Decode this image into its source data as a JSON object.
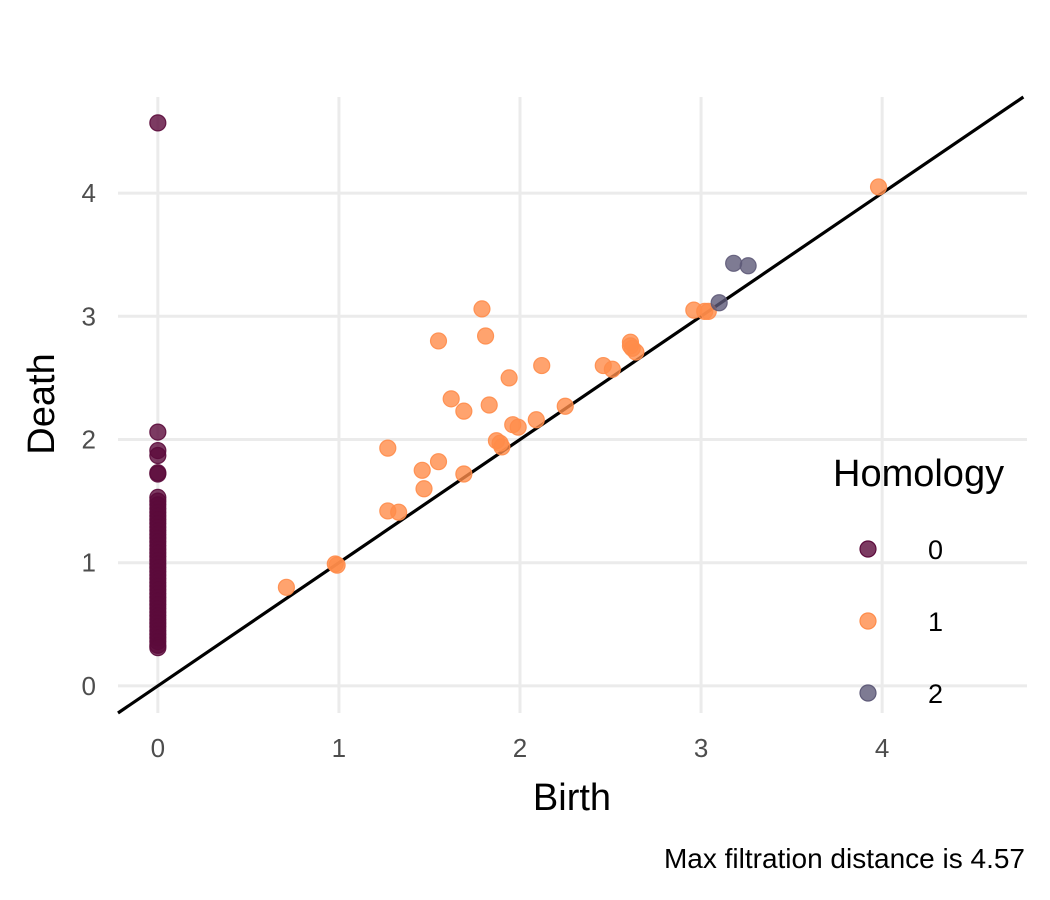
{
  "chart_data": {
    "type": "scatter",
    "xlabel": "Birth",
    "ylabel": "Death",
    "caption": "Max filtration distance is 4.57",
    "xlim": [
      -0.22,
      4.8
    ],
    "ylim": [
      -0.22,
      4.78
    ],
    "x_ticks": [
      0,
      1,
      2,
      3,
      4
    ],
    "y_ticks": [
      0,
      1,
      2,
      3,
      4
    ],
    "grid": true,
    "diagonal_line": true,
    "legend": {
      "title": "Homology",
      "position": "right",
      "entries": [
        "0",
        "1",
        "2"
      ]
    },
    "colors": {
      "0": "#5b0a3b",
      "1": "#ff8c4a",
      "2": "#5e5a78"
    },
    "series": [
      {
        "name": "0",
        "points": [
          [
            0,
            4.57
          ],
          [
            0,
            2.06
          ],
          [
            0,
            1.91
          ],
          [
            0,
            1.87
          ],
          [
            0,
            1.73
          ],
          [
            0,
            1.72
          ],
          [
            0,
            1.53
          ],
          [
            0,
            1.5
          ],
          [
            0,
            1.47
          ],
          [
            0,
            1.44
          ],
          [
            0,
            1.41
          ],
          [
            0,
            1.38
          ],
          [
            0,
            1.35
          ],
          [
            0,
            1.32
          ],
          [
            0,
            1.29
          ],
          [
            0,
            1.26
          ],
          [
            0,
            1.23
          ],
          [
            0,
            1.2
          ],
          [
            0,
            1.17
          ],
          [
            0,
            1.14
          ],
          [
            0,
            1.11
          ],
          [
            0,
            1.08
          ],
          [
            0,
            1.05
          ],
          [
            0,
            1.02
          ],
          [
            0,
            0.99
          ],
          [
            0,
            0.96
          ],
          [
            0,
            0.93
          ],
          [
            0,
            0.9
          ],
          [
            0,
            0.87
          ],
          [
            0,
            0.84
          ],
          [
            0,
            0.81
          ],
          [
            0,
            0.78
          ],
          [
            0,
            0.75
          ],
          [
            0,
            0.72
          ],
          [
            0,
            0.69
          ],
          [
            0,
            0.66
          ],
          [
            0,
            0.63
          ],
          [
            0,
            0.6
          ],
          [
            0,
            0.57
          ],
          [
            0,
            0.54
          ],
          [
            0,
            0.51
          ],
          [
            0,
            0.48
          ],
          [
            0,
            0.45
          ],
          [
            0,
            0.42
          ],
          [
            0,
            0.39
          ],
          [
            0,
            0.36
          ],
          [
            0,
            0.33
          ],
          [
            0,
            0.31
          ]
        ]
      },
      {
        "name": "1",
        "points": [
          [
            0.71,
            0.8
          ],
          [
            0.98,
            0.99
          ],
          [
            0.99,
            0.98
          ],
          [
            1.27,
            1.93
          ],
          [
            1.27,
            1.42
          ],
          [
            1.33,
            1.41
          ],
          [
            1.46,
            1.75
          ],
          [
            1.47,
            1.6
          ],
          [
            1.55,
            2.8
          ],
          [
            1.55,
            1.82
          ],
          [
            1.62,
            2.33
          ],
          [
            1.69,
            2.23
          ],
          [
            1.69,
            1.72
          ],
          [
            1.79,
            3.06
          ],
          [
            1.81,
            2.84
          ],
          [
            1.83,
            2.28
          ],
          [
            1.87,
            1.99
          ],
          [
            1.89,
            1.97
          ],
          [
            1.9,
            1.94
          ],
          [
            1.94,
            2.5
          ],
          [
            1.96,
            2.12
          ],
          [
            1.99,
            2.1
          ],
          [
            2.09,
            2.16
          ],
          [
            2.12,
            2.6
          ],
          [
            2.25,
            2.27
          ],
          [
            2.46,
            2.6
          ],
          [
            2.51,
            2.57
          ],
          [
            2.61,
            2.79
          ],
          [
            2.61,
            2.76
          ],
          [
            2.62,
            2.74
          ],
          [
            2.64,
            2.71
          ],
          [
            2.96,
            3.05
          ],
          [
            3.02,
            3.04
          ],
          [
            3.04,
            3.04
          ],
          [
            3.98,
            4.05
          ]
        ]
      },
      {
        "name": "2",
        "points": [
          [
            3.1,
            3.11
          ],
          [
            3.18,
            3.43
          ],
          [
            3.26,
            3.41
          ]
        ]
      }
    ]
  }
}
